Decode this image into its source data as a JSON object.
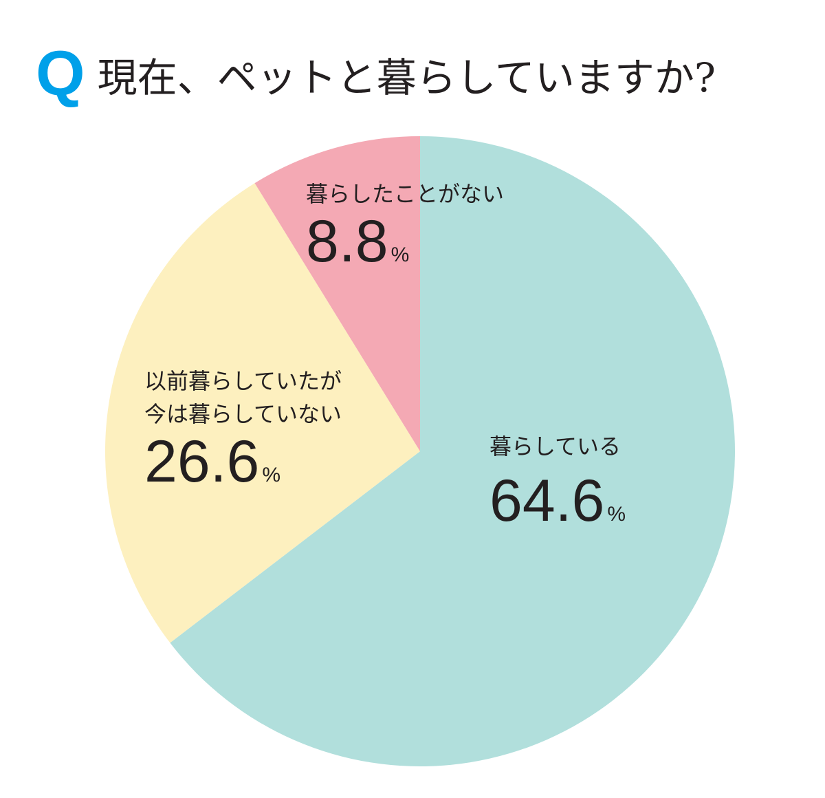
{
  "chart_data": {
    "type": "pie",
    "question_label": "Q",
    "title": "現在、ペットと暮らしていますか?",
    "categories": [
      "暮らしている",
      "以前暮らしていたが\n今は暮らしていない",
      "暮らしたことがない"
    ],
    "values": [
      64.6,
      26.6,
      8.8
    ],
    "value_suffix": "%",
    "colors": [
      "#b1dfdc",
      "#fdf0bf",
      "#f4a9b4"
    ]
  }
}
